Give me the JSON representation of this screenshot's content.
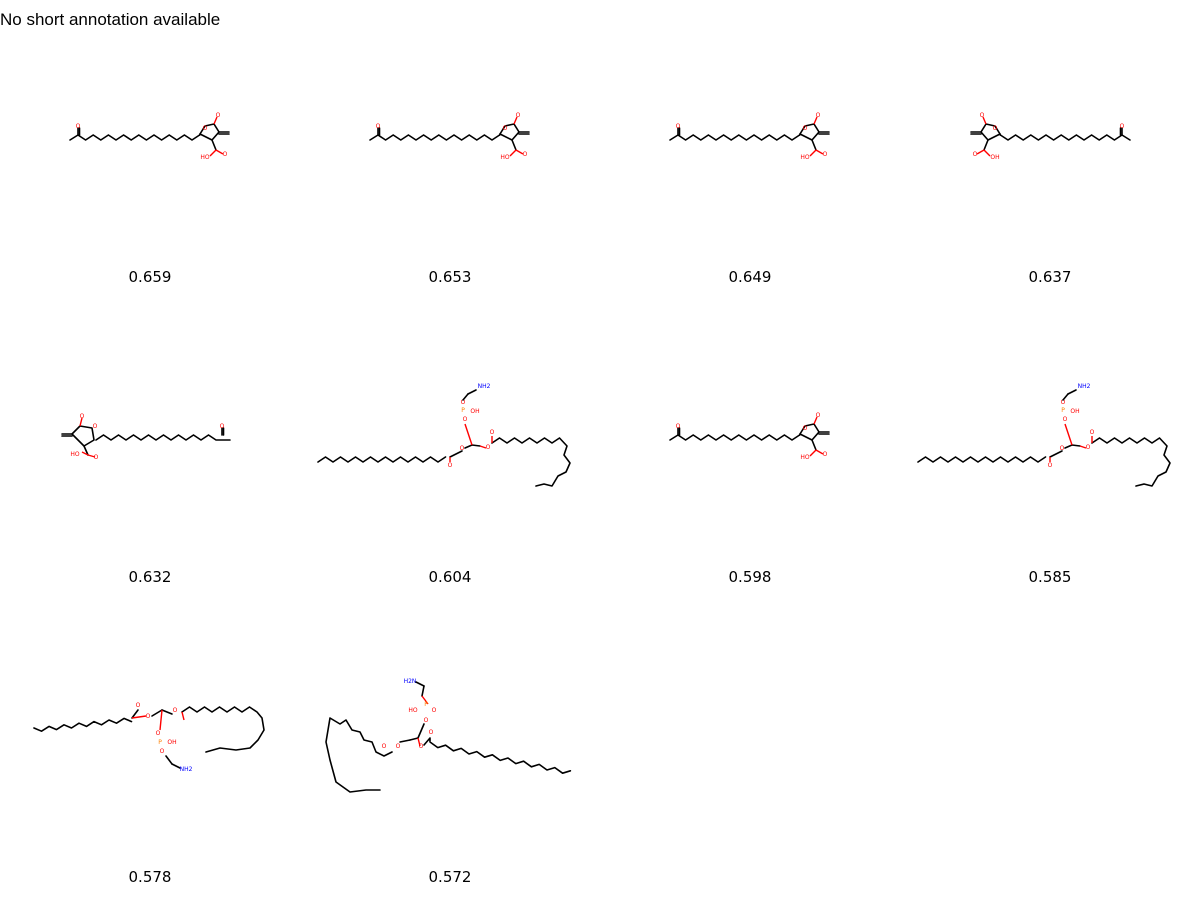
{
  "title": "No short annotation available",
  "molecules": [
    {
      "score": "0.659",
      "kind": "lactone"
    },
    {
      "score": "0.653",
      "kind": "lactone"
    },
    {
      "score": "0.649",
      "kind": "lactone"
    },
    {
      "score": "0.637",
      "kind": "lactone-flipped"
    },
    {
      "score": "0.632",
      "kind": "lactone-left"
    },
    {
      "score": "0.604",
      "kind": "phospholipid"
    },
    {
      "score": "0.598",
      "kind": "lactone"
    },
    {
      "score": "0.585",
      "kind": "phospholipid"
    },
    {
      "score": "0.578",
      "kind": "phospholipid-down"
    },
    {
      "score": "0.572",
      "kind": "phospholipid-left"
    }
  ],
  "atom_labels": {
    "oxygen": "O",
    "hydroxyl": "OH",
    "hydroxyl_left": "HO",
    "amine": "NH2",
    "amine_left": "H2N",
    "phosphorus": "P"
  }
}
